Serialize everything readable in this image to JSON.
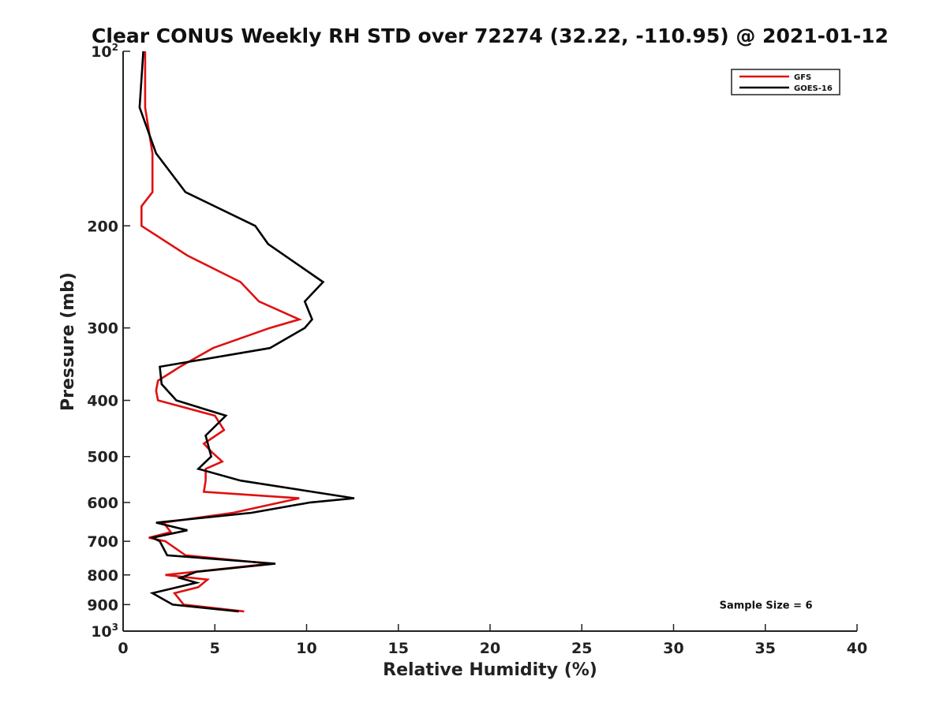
{
  "chart_data": {
    "type": "line",
    "title": "Clear CONUS Weekly RH STD over 72274 (32.22, -110.95) @ 2021-01-12",
    "xlabel": "Relative Humidity (%)",
    "ylabel": "Pressure (mb)",
    "xlim": [
      0,
      40
    ],
    "ylim": [
      100,
      1000
    ],
    "y_scale": "log",
    "y_reversed": true,
    "x_ticks": [
      "0",
      "5",
      "10",
      "15",
      "20",
      "25",
      "30",
      "35",
      "40"
    ],
    "y_ticks": [
      {
        "value": 100,
        "base": "10",
        "exp": "2"
      },
      {
        "value": 200,
        "label": "200"
      },
      {
        "value": 300,
        "label": "300"
      },
      {
        "value": 400,
        "label": "400"
      },
      {
        "value": 500,
        "label": "500"
      },
      {
        "value": 600,
        "label": "600"
      },
      {
        "value": 700,
        "label": "700"
      },
      {
        "value": 800,
        "label": "800"
      },
      {
        "value": 900,
        "label": "900"
      },
      {
        "value": 1000,
        "base": "10",
        "exp": "3"
      }
    ],
    "grid": false,
    "legend_position": "top-right",
    "series": [
      {
        "name": "GFS",
        "color": "#e01010",
        "points": [
          {
            "x": 1.2,
            "p": 100
          },
          {
            "x": 1.2,
            "p": 125
          },
          {
            "x": 1.6,
            "p": 150
          },
          {
            "x": 1.6,
            "p": 175
          },
          {
            "x": 1.0,
            "p": 185
          },
          {
            "x": 1.0,
            "p": 200
          },
          {
            "x": 3.5,
            "p": 225
          },
          {
            "x": 6.4,
            "p": 250
          },
          {
            "x": 7.4,
            "p": 270
          },
          {
            "x": 9.6,
            "p": 290
          },
          {
            "x": 8.0,
            "p": 300
          },
          {
            "x": 4.9,
            "p": 325
          },
          {
            "x": 3.1,
            "p": 350
          },
          {
            "x": 1.9,
            "p": 370
          },
          {
            "x": 1.8,
            "p": 385
          },
          {
            "x": 1.9,
            "p": 400
          },
          {
            "x": 5.0,
            "p": 425
          },
          {
            "x": 5.5,
            "p": 450
          },
          {
            "x": 4.4,
            "p": 475
          },
          {
            "x": 4.8,
            "p": 490
          },
          {
            "x": 5.4,
            "p": 510
          },
          {
            "x": 4.5,
            "p": 525
          },
          {
            "x": 4.5,
            "p": 550
          },
          {
            "x": 4.4,
            "p": 575
          },
          {
            "x": 9.6,
            "p": 590
          },
          {
            "x": 6.0,
            "p": 625
          },
          {
            "x": 2.2,
            "p": 650
          },
          {
            "x": 2.6,
            "p": 675
          },
          {
            "x": 1.4,
            "p": 690
          },
          {
            "x": 2.3,
            "p": 700
          },
          {
            "x": 3.4,
            "p": 740
          },
          {
            "x": 8.0,
            "p": 765
          },
          {
            "x": 2.3,
            "p": 800
          },
          {
            "x": 4.6,
            "p": 815
          },
          {
            "x": 4.1,
            "p": 840
          },
          {
            "x": 2.8,
            "p": 860
          },
          {
            "x": 3.3,
            "p": 900
          },
          {
            "x": 6.6,
            "p": 925
          }
        ]
      },
      {
        "name": "GOES-16",
        "color": "#000000",
        "points": [
          {
            "x": 1.1,
            "p": 100
          },
          {
            "x": 0.9,
            "p": 125
          },
          {
            "x": 1.8,
            "p": 150
          },
          {
            "x": 3.4,
            "p": 175
          },
          {
            "x": 7.2,
            "p": 200
          },
          {
            "x": 7.9,
            "p": 215
          },
          {
            "x": 10.9,
            "p": 250
          },
          {
            "x": 9.9,
            "p": 270
          },
          {
            "x": 10.3,
            "p": 290
          },
          {
            "x": 9.9,
            "p": 300
          },
          {
            "x": 8.0,
            "p": 325
          },
          {
            "x": 2.0,
            "p": 350
          },
          {
            "x": 2.1,
            "p": 375
          },
          {
            "x": 2.9,
            "p": 400
          },
          {
            "x": 5.6,
            "p": 425
          },
          {
            "x": 4.5,
            "p": 460
          },
          {
            "x": 4.8,
            "p": 500
          },
          {
            "x": 4.1,
            "p": 525
          },
          {
            "x": 6.4,
            "p": 550
          },
          {
            "x": 12.6,
            "p": 590
          },
          {
            "x": 10.2,
            "p": 600
          },
          {
            "x": 7.0,
            "p": 625
          },
          {
            "x": 1.8,
            "p": 650
          },
          {
            "x": 3.5,
            "p": 670
          },
          {
            "x": 1.6,
            "p": 690
          },
          {
            "x": 2.0,
            "p": 700
          },
          {
            "x": 2.4,
            "p": 740
          },
          {
            "x": 8.3,
            "p": 765
          },
          {
            "x": 4.0,
            "p": 790
          },
          {
            "x": 3.1,
            "p": 810
          },
          {
            "x": 4.0,
            "p": 825
          },
          {
            "x": 1.6,
            "p": 860
          },
          {
            "x": 2.7,
            "p": 900
          },
          {
            "x": 6.3,
            "p": 925
          }
        ]
      }
    ],
    "annotations": [
      {
        "text": "Sample Size = 6",
        "x": 32.5,
        "p": 900
      }
    ]
  }
}
